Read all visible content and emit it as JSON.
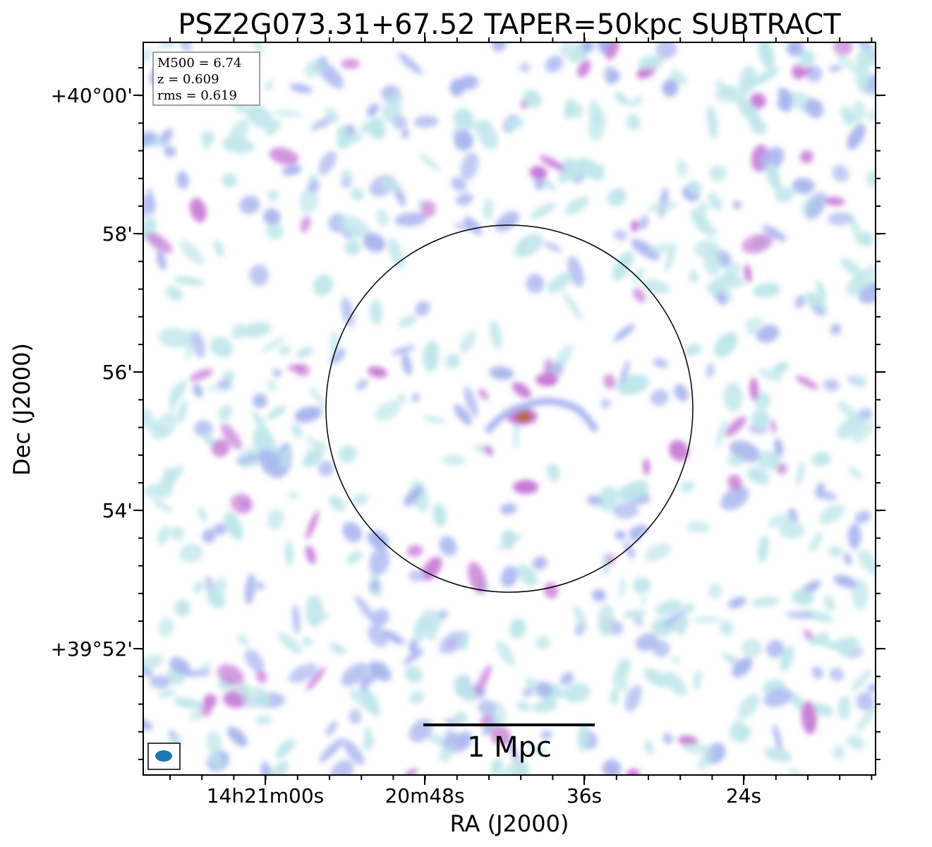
{
  "title": "PSZ2G073.31+67.52 TAPER=50kpc SUBTRACT",
  "xlabel": "RA (J2000)",
  "ylabel": "Dec (J2000)",
  "x_ticks": [
    "14h21m00s",
    "20m48s",
    "36s",
    "24s"
  ],
  "y_ticks": [
    "+40°00'",
    "58'",
    "56'",
    "54'",
    "+39°52'"
  ],
  "info": {
    "m500": "M500 = 6.74",
    "z": "z = 0.609",
    "rms": "rms = 0.619"
  },
  "scalebar": {
    "label": "1 Mpc"
  },
  "colors": {
    "noise_faint": "#bfe6ea",
    "noise_mid": "#a9b6ef",
    "noise_strong": "#c77ad6",
    "source_core": "#b5683f",
    "beam": "#1f77b4",
    "circle": "#000000"
  }
}
